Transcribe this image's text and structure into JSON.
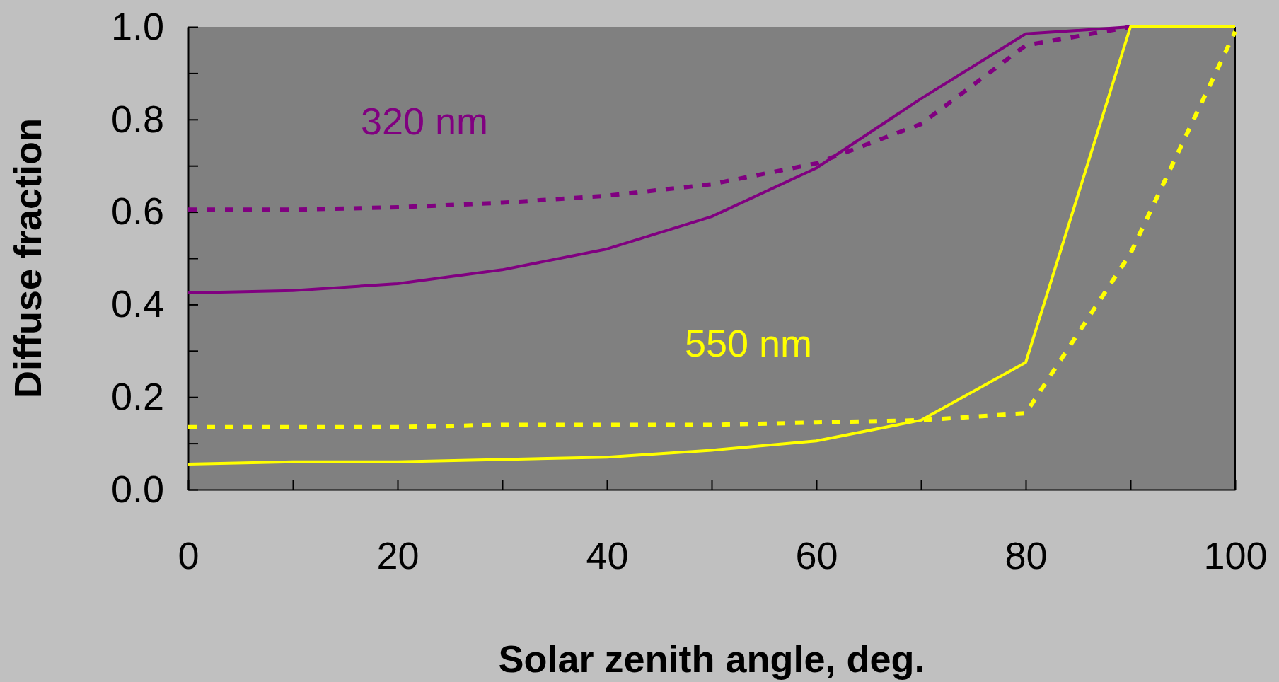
{
  "chart_data": {
    "type": "line",
    "xlabel": "Solar zenith angle, deg.",
    "ylabel": "Diffuse fraction",
    "x": [
      0,
      10,
      20,
      30,
      40,
      50,
      60,
      70,
      80,
      90,
      100
    ],
    "series": [
      {
        "color": "#800080",
        "line_style": "solid",
        "values": [
          0.425,
          0.43,
          0.445,
          0.475,
          0.52,
          0.59,
          0.695,
          0.845,
          0.985,
          1.0,
          null
        ]
      },
      {
        "color": "#800080",
        "line_style": "dashed",
        "values": [
          0.605,
          0.605,
          0.61,
          0.62,
          0.635,
          0.66,
          0.705,
          0.79,
          0.96,
          1.0,
          null
        ]
      },
      {
        "color": "#ffff00",
        "line_style": "solid",
        "values": [
          0.055,
          0.06,
          0.06,
          0.065,
          0.07,
          0.085,
          0.105,
          0.15,
          0.275,
          1.0,
          1.0
        ]
      },
      {
        "color": "#ffff00",
        "line_style": "dashed",
        "values": [
          0.135,
          0.135,
          0.135,
          0.14,
          0.14,
          0.14,
          0.145,
          0.15,
          0.165,
          0.51,
          0.99
        ]
      }
    ],
    "annotations": [
      "320 nm",
      "550 nm"
    ],
    "xlim": [
      0,
      100
    ],
    "ylim": [
      0,
      1
    ],
    "xticks": [
      0,
      {
        "value": 10,
        "label": null
      },
      20,
      {
        "value": 30,
        "label": null
      },
      40,
      {
        "value": 50,
        "label": null
      },
      60,
      {
        "value": 70,
        "label": null
      },
      80,
      {
        "value": 90,
        "label": null
      },
      100
    ],
    "yticks": [
      {
        "value": 0,
        "label": "0.0"
      },
      {
        "value": 0.1,
        "label": null
      },
      {
        "value": 0.2,
        "label": "0.2"
      },
      {
        "value": 0.3,
        "label": null
      },
      {
        "value": 0.4,
        "label": "0.4"
      },
      {
        "value": 0.5,
        "label": null
      },
      {
        "value": 0.6,
        "label": "0.6"
      },
      {
        "value": 0.7,
        "label": null
      },
      {
        "value": 0.8,
        "label": "0.8"
      },
      {
        "value": 0.9,
        "label": null
      },
      {
        "value": 1,
        "label": "1.0"
      }
    ],
    "marker": "none",
    "grid": false
  }
}
